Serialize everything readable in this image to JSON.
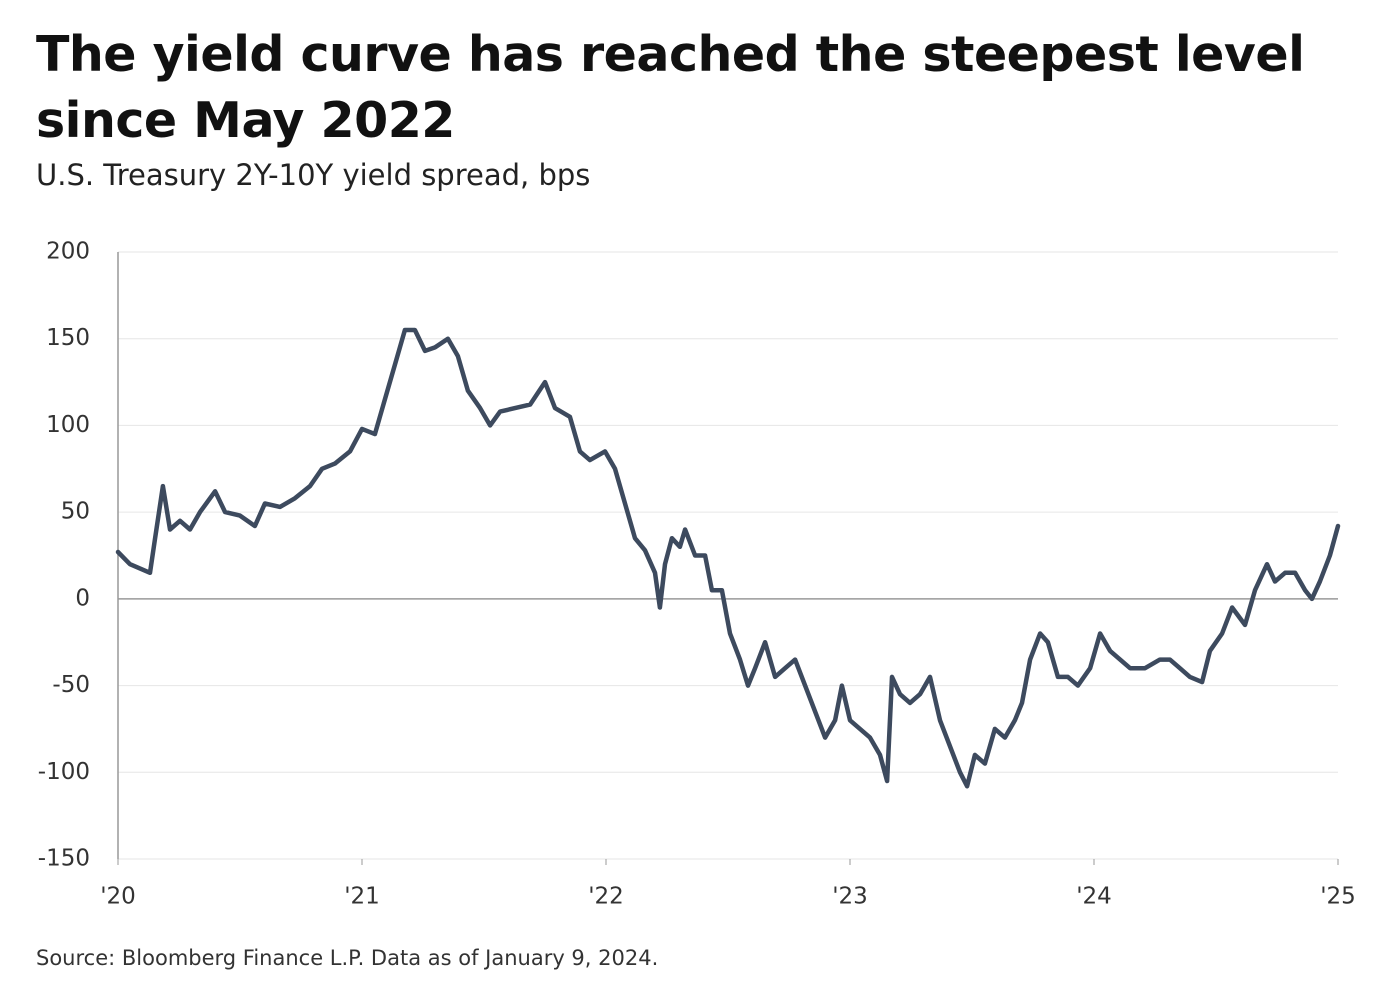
{
  "chart_data": {
    "type": "line",
    "title": "The yield curve has reached the steepest level since May 2022",
    "subtitle": "U.S. Treasury 2Y-10Y yield spread, bps",
    "source": "Source: Bloomberg Finance L.P. Data as of January 9, 2024.",
    "x": [
      2020.0,
      2020.049,
      2020.131,
      2020.152,
      2020.184,
      2020.213,
      2020.254,
      2020.295,
      2020.336,
      2020.398,
      2020.439,
      2020.5,
      2020.561,
      2020.602,
      2020.664,
      2020.725,
      2020.787,
      2020.836,
      2020.889,
      2020.951,
      2021.0,
      2021.053,
      2021.094,
      2021.135,
      2021.176,
      2021.217,
      2021.258,
      2021.299,
      2021.352,
      2021.393,
      2021.434,
      2021.484,
      2021.525,
      2021.566,
      2021.627,
      2021.689,
      2021.75,
      2021.791,
      2021.852,
      2021.893,
      2021.934,
      2021.996,
      2022.037,
      2022.078,
      2022.119,
      2022.16,
      2022.201,
      2022.221,
      2022.242,
      2022.27,
      2022.303,
      2022.324,
      2022.365,
      2022.406,
      2022.434,
      2022.475,
      2022.508,
      2022.549,
      2022.582,
      2022.611,
      2022.652,
      2022.693,
      2022.734,
      2022.775,
      2022.816,
      2022.857,
      2022.898,
      2022.939,
      2022.967,
      2023.0,
      2023.041,
      2023.082,
      2023.123,
      2023.152,
      2023.172,
      2023.205,
      2023.246,
      2023.287,
      2023.328,
      2023.369,
      2023.41,
      2023.451,
      2023.48,
      2023.512,
      2023.553,
      2023.594,
      2023.635,
      2023.676,
      2023.705,
      2023.738,
      2023.779,
      2023.811,
      2023.852,
      2023.893,
      2023.934,
      2023.984,
      2024.025,
      2024.066,
      2024.107,
      2024.148,
      2024.209,
      2024.27,
      2024.311,
      2024.352,
      2024.393,
      2024.443,
      2024.475,
      2024.525,
      2024.566,
      2024.619,
      2024.66,
      2024.709,
      2024.742,
      2024.783,
      2024.824,
      2024.865,
      2024.893,
      2024.926,
      2024.967,
      2025.0
    ],
    "series": [
      {
        "color": "#3d4a5e",
        "values": [
          27,
          20,
          15,
          35,
          65,
          40,
          45,
          40,
          50,
          62,
          50,
          48,
          42,
          55,
          53,
          58,
          65,
          75,
          78,
          85,
          98,
          95,
          115,
          135,
          155,
          155,
          143,
          145,
          150,
          140,
          120,
          110,
          100,
          108,
          110,
          112,
          125,
          110,
          105,
          85,
          80,
          85,
          75,
          55,
          35,
          28,
          15,
          -5,
          20,
          35,
          30,
          40,
          25,
          25,
          5,
          5,
          -20,
          -35,
          -50,
          -40,
          -25,
          -45,
          -40,
          -35,
          -50,
          -65,
          -80,
          -70,
          -50,
          -70,
          -75,
          -80,
          -90,
          -105,
          -45,
          -55,
          -60,
          -55,
          -45,
          -70,
          -85,
          -100,
          -108,
          -90,
          -95,
          -75,
          -80,
          -70,
          -60,
          -35,
          -20,
          -25,
          -45,
          -45,
          -50,
          -40,
          -20,
          -30,
          -35,
          -40,
          -40,
          -35,
          -35,
          -40,
          -45,
          -48,
          -30,
          -20,
          -5,
          -15,
          5,
          20,
          10,
          15,
          15,
          5,
          0,
          10,
          25,
          42
        ]
      }
    ],
    "xlim": [
      2020,
      2025
    ],
    "xticks": [
      {
        "value": 2020,
        "label": "'20"
      },
      {
        "value": 2021,
        "label": "'21"
      },
      {
        "value": 2022,
        "label": "'22"
      },
      {
        "value": 2023,
        "label": "'23"
      },
      {
        "value": 2024,
        "label": "'24"
      },
      {
        "value": 2025,
        "label": "'25"
      }
    ],
    "ylim": [
      -150,
      200
    ],
    "yticks": [
      200,
      150,
      100,
      50,
      0,
      -50,
      -100,
      -150
    ],
    "grid": true
  }
}
